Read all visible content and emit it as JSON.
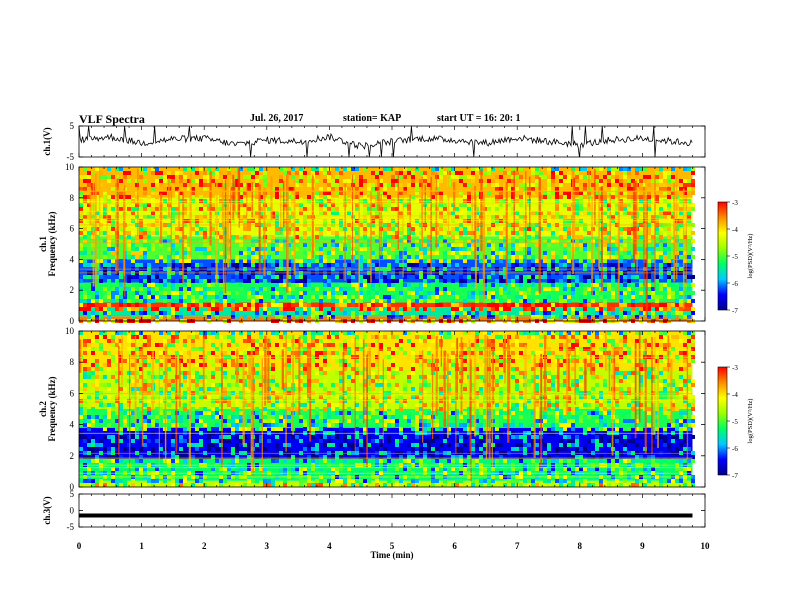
{
  "header": {
    "title": "VLF Spectra",
    "date": "Jul. 26, 2017",
    "station": "station= KAP",
    "start": "start UT = 16: 20: 1"
  },
  "colors": {
    "spectrogram_scale": [
      "#00008b",
      "#0000ff",
      "#00c8ff",
      "#00ff64",
      "#9bff00",
      "#ffff00",
      "#ff8c00",
      "#ff0000"
    ],
    "trace": "#000000"
  },
  "chart_data": [
    {
      "type": "line",
      "panel": "ch.1 waveform",
      "ylabel": "ch.1(V)",
      "yticks": [
        "5",
        "-5"
      ],
      "ylim": [
        -5,
        5
      ],
      "xlim": [
        0,
        10
      ],
      "description_series": "noisy waveform oscillating roughly between -2 and 2 V with many spikes to the limits",
      "series": [
        {
          "x": [
            0,
            0.5,
            1,
            1.5,
            2,
            2.5,
            3,
            3.5,
            4,
            4.5,
            5,
            5.5,
            6,
            6.5,
            7,
            7.5,
            8,
            8.5,
            9,
            9.5,
            9.8
          ],
          "y": [
            0.5,
            1.5,
            -0.5,
            0.8,
            1.0,
            -1.0,
            0.5,
            0.0,
            1.5,
            -1.5,
            0.0,
            1.0,
            0.5,
            -0.5,
            1.2,
            0.0,
            -1.0,
            0.5,
            1.0,
            0.0,
            -0.5
          ]
        }
      ]
    },
    {
      "type": "heatmap",
      "panel": "ch.1 spectrogram",
      "ylabel": "ch.1\nFrequency (kHz)",
      "yticks": [
        "0",
        "2",
        "4",
        "6",
        "8",
        "10"
      ],
      "ylim": [
        0,
        10
      ],
      "xlim": [
        0,
        9.8
      ],
      "colorbar": {
        "label": "log(PSD)(V²/Hz)",
        "ticks": [
          "-3",
          "-4",
          "-5",
          "-6",
          "-7"
        ],
        "range": [
          -7,
          -3
        ]
      },
      "bands_log_psd": [
        {
          "f_range": [
            0,
            0.3
          ],
          "value": -3.5
        },
        {
          "f_range": [
            0.3,
            0.9
          ],
          "value": -5.5
        },
        {
          "f_range": [
            0.9,
            1.2
          ],
          "value": -3.2
        },
        {
          "f_range": [
            1.2,
            2.5
          ],
          "value": -5.2
        },
        {
          "f_range": [
            2.5,
            4.0
          ],
          "value": -6.2
        },
        {
          "f_range": [
            4.0,
            5.5
          ],
          "value": -5.0
        },
        {
          "f_range": [
            5.5,
            8.0
          ],
          "value": -4.3
        },
        {
          "f_range": [
            8.0,
            10.0
          ],
          "value": -3.8
        }
      ]
    },
    {
      "type": "heatmap",
      "panel": "ch.2 spectrogram",
      "ylabel": "ch.2\nFrequency (kHz)",
      "yticks": [
        "0",
        "2",
        "4",
        "6",
        "8",
        "10"
      ],
      "ylim": [
        0,
        10
      ],
      "xlim": [
        0,
        9.8
      ],
      "colorbar": {
        "label": "log(PSD)(V²/Hz)",
        "ticks": [
          "-3",
          "-4",
          "-5",
          "-6",
          "-7"
        ],
        "range": [
          -7,
          -3
        ]
      },
      "bands_log_psd": [
        {
          "f_range": [
            0,
            0.4
          ],
          "value": -4.5
        },
        {
          "f_range": [
            0.4,
            1.8
          ],
          "value": -5.3
        },
        {
          "f_range": [
            1.8,
            3.8
          ],
          "value": -6.5
        },
        {
          "f_range": [
            3.8,
            5.0
          ],
          "value": -5.2
        },
        {
          "f_range": [
            5.0,
            7.5
          ],
          "value": -4.5
        },
        {
          "f_range": [
            7.5,
            10.0
          ],
          "value": -4.0
        }
      ]
    },
    {
      "type": "line",
      "panel": "ch.3 waveform",
      "ylabel": "ch.3(V)",
      "yticks": [
        "5",
        "0",
        "-5"
      ],
      "ylim": [
        -5,
        5
      ],
      "xlim": [
        0,
        10
      ],
      "series": [
        {
          "x": [
            0,
            9.8
          ],
          "y": [
            -1.5,
            -1.5
          ]
        }
      ]
    }
  ],
  "xaxis": {
    "label": "Time (min)",
    "ticks": [
      "0",
      "1",
      "2",
      "3",
      "4",
      "5",
      "6",
      "7",
      "8",
      "9",
      "10"
    ]
  }
}
